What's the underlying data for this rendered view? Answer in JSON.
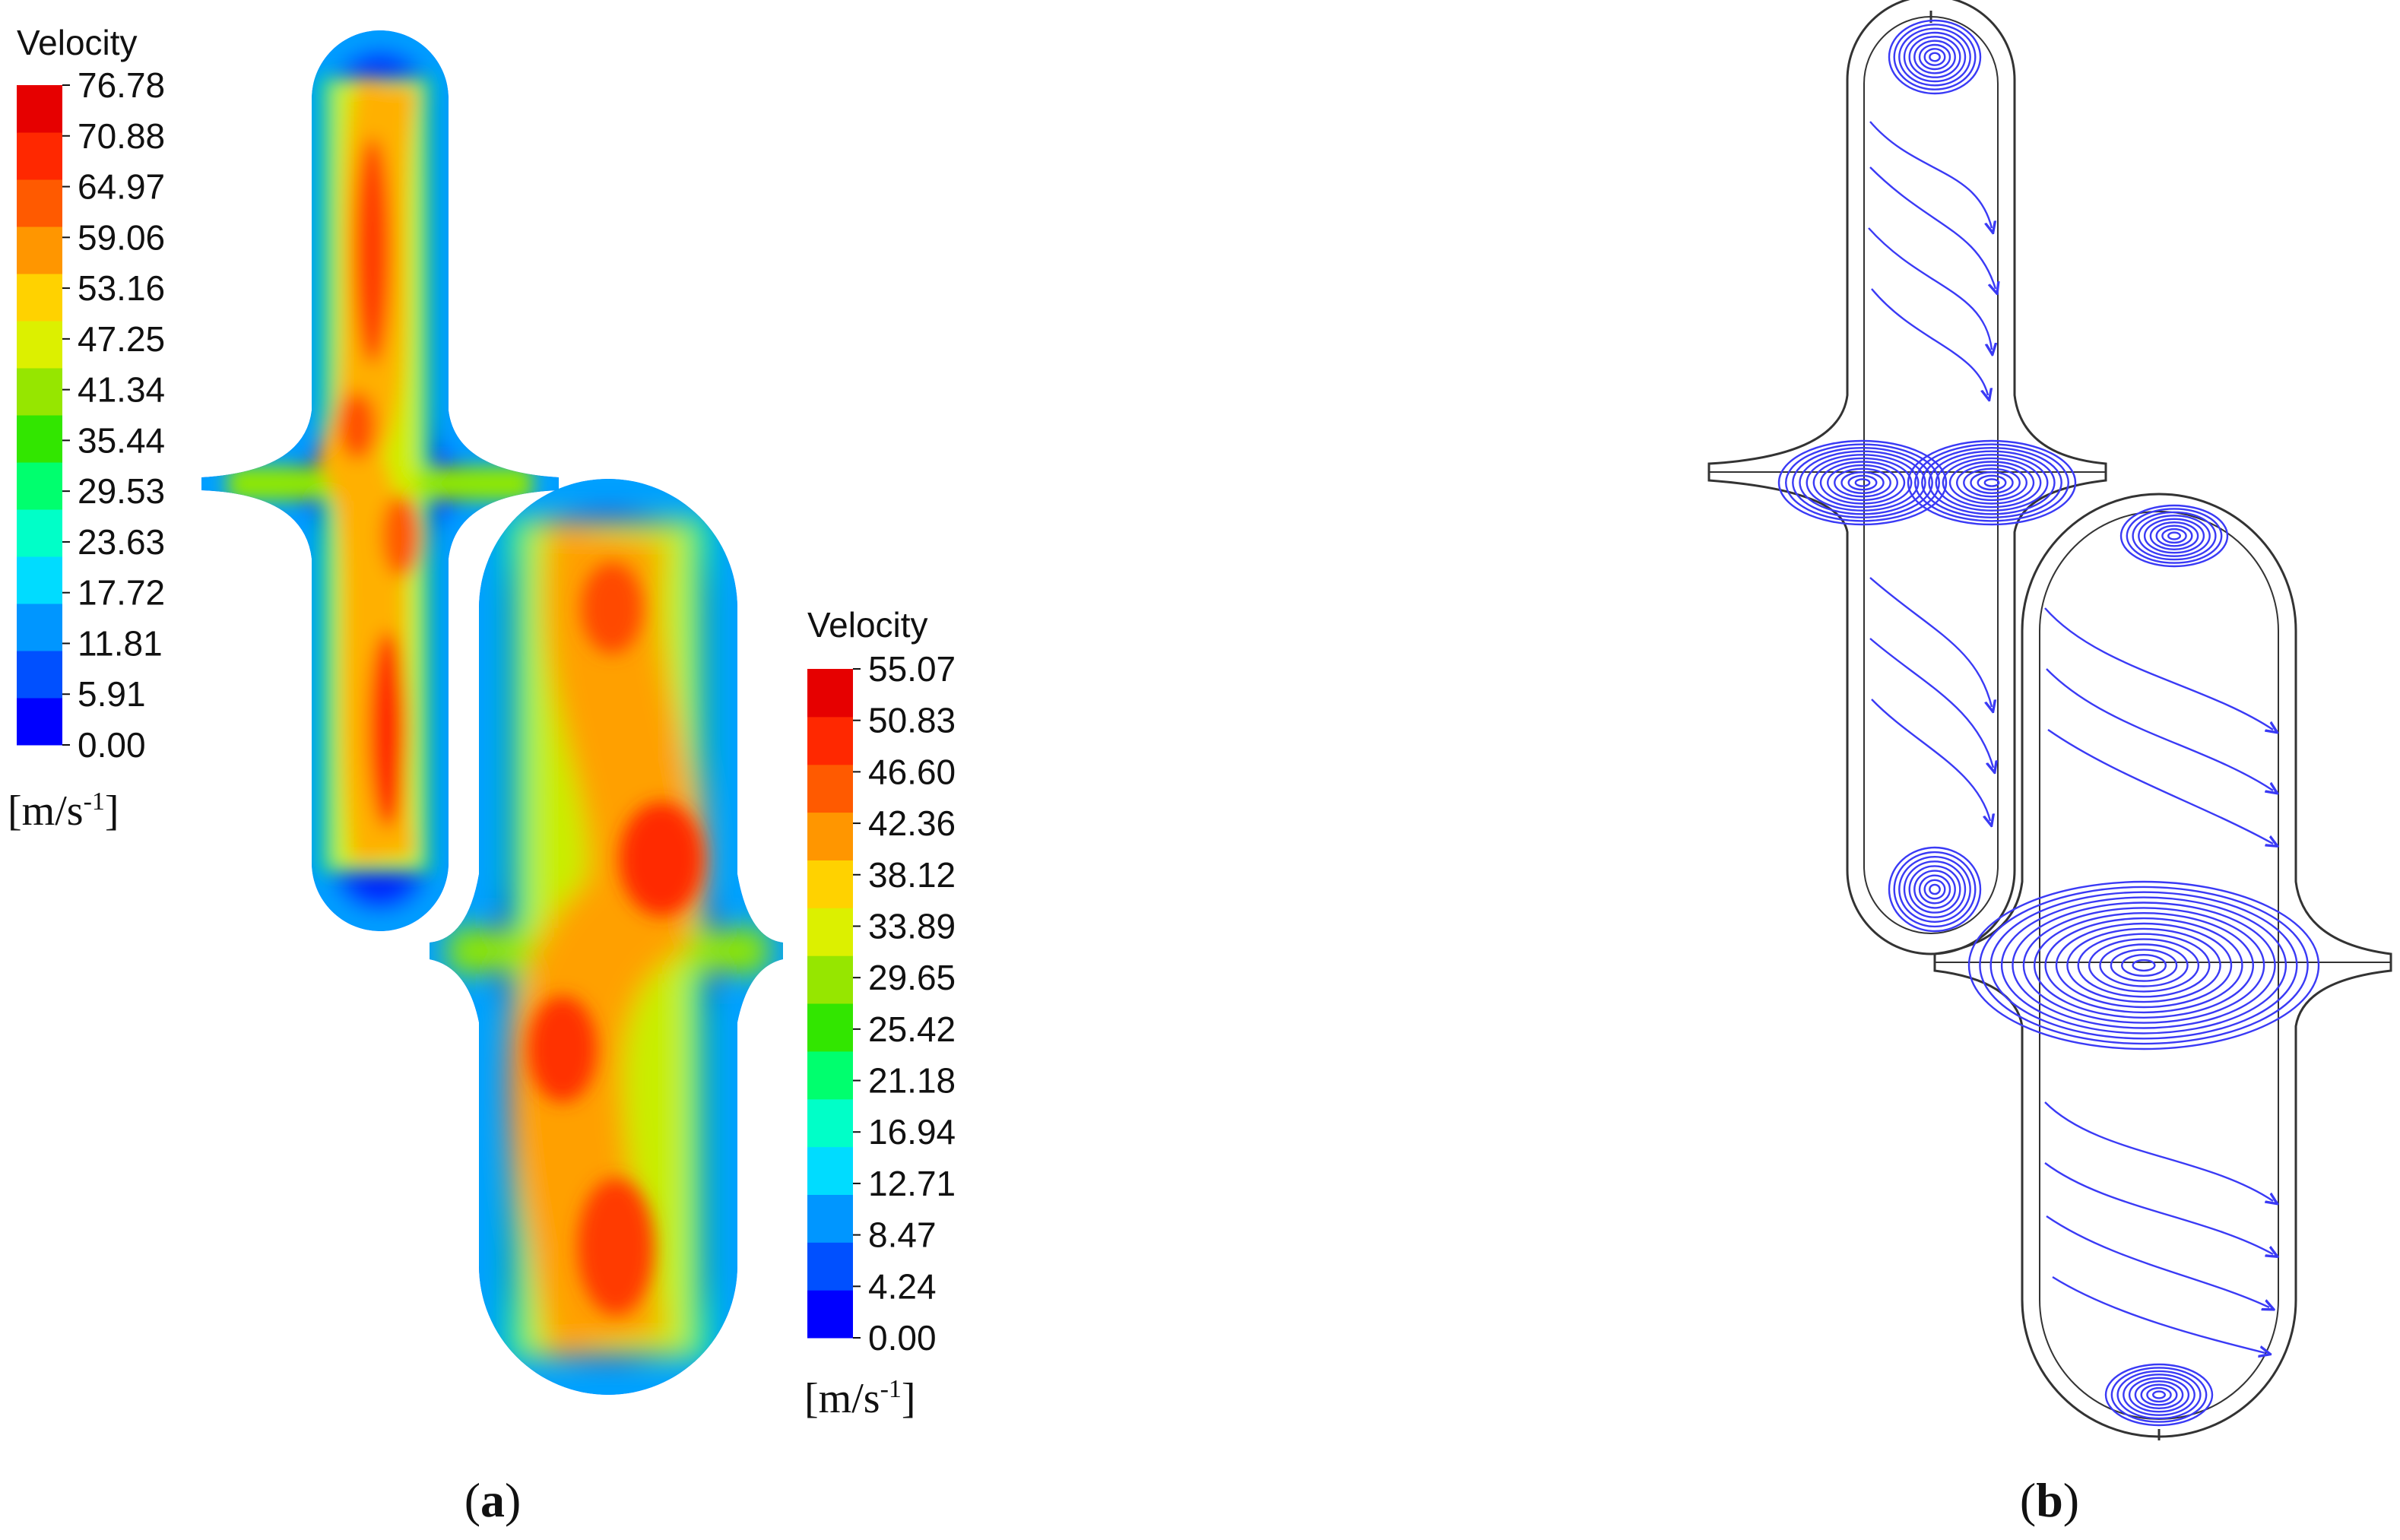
{
  "panel_a": {
    "label_open": "(",
    "label_letter": "a",
    "label_close": ")",
    "legend_upper": {
      "title": "Velocity",
      "unit_main": "[m/s",
      "unit_sup": "-1",
      "unit_close": "]",
      "ticks": [
        "76.78",
        "70.88",
        "64.97",
        "59.06",
        "53.16",
        "47.25",
        "41.34",
        "35.44",
        "29.53",
        "23.63",
        "17.72",
        "11.81",
        "5.91",
        "0.00"
      ]
    },
    "legend_lower": {
      "title": "Velocity",
      "unit_main": "[m/s",
      "unit_sup": "-1",
      "unit_close": "]",
      "ticks": [
        "55.07",
        "50.83",
        "46.60",
        "42.36",
        "38.12",
        "33.89",
        "29.65",
        "25.42",
        "21.18",
        "16.94",
        "12.71",
        "8.47",
        "4.24",
        "0.00"
      ]
    }
  },
  "panel_b": {
    "label_open": "(",
    "label_letter": "b",
    "label_close": ")"
  },
  "colors": {
    "colormap": [
      "#0000ff",
      "#0050ff",
      "#0096ff",
      "#00dcff",
      "#00ffc8",
      "#00ff6e",
      "#32e600",
      "#96e600",
      "#dcf000",
      "#ffd200",
      "#ff9600",
      "#ff5a00",
      "#ff2800",
      "#e60000"
    ],
    "streamline": "#3a3af5",
    "outline": "#333333"
  }
}
